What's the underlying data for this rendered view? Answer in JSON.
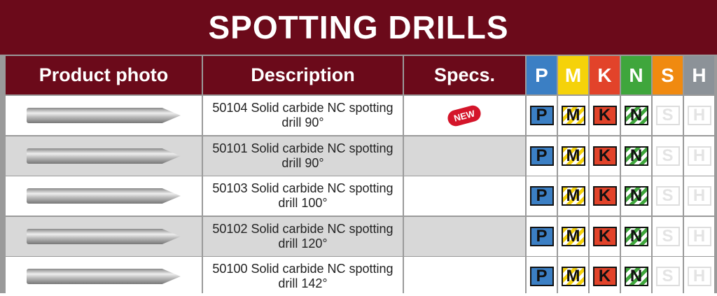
{
  "title": "SPOTTING DRILLS",
  "headers": {
    "photo": "Product photo",
    "description": "Description",
    "specs": "Specs."
  },
  "materials": [
    {
      "letter": "P",
      "color": "#3b7fc4"
    },
    {
      "letter": "M",
      "color": "#f5d20a"
    },
    {
      "letter": "K",
      "color": "#e2432a"
    },
    {
      "letter": "N",
      "color": "#3fa63c"
    },
    {
      "letter": "S",
      "color": "#f08a10"
    },
    {
      "letter": "H",
      "color": "#8c9298"
    }
  ],
  "rows": [
    {
      "line1": "50104 Solid carbide NC spotting",
      "line2": "drill 90°",
      "badge": "NEW",
      "active": [
        "P",
        "M",
        "K",
        "N"
      ]
    },
    {
      "line1": "50101 Solid carbide NC spotting",
      "line2": "drill 90°",
      "active": [
        "P",
        "M",
        "K",
        "N"
      ]
    },
    {
      "line1": "50103 Solid carbide NC spotting",
      "line2": "drill 100°",
      "active": [
        "P",
        "M",
        "K",
        "N"
      ]
    },
    {
      "line1": "50102 Solid carbide NC spotting",
      "line2": "drill 120°",
      "active": [
        "P",
        "M",
        "K",
        "N"
      ]
    },
    {
      "line1": "50100 Solid carbide NC spotting",
      "line2": "drill 142°",
      "active": [
        "P",
        "M",
        "K",
        "N"
      ]
    }
  ]
}
